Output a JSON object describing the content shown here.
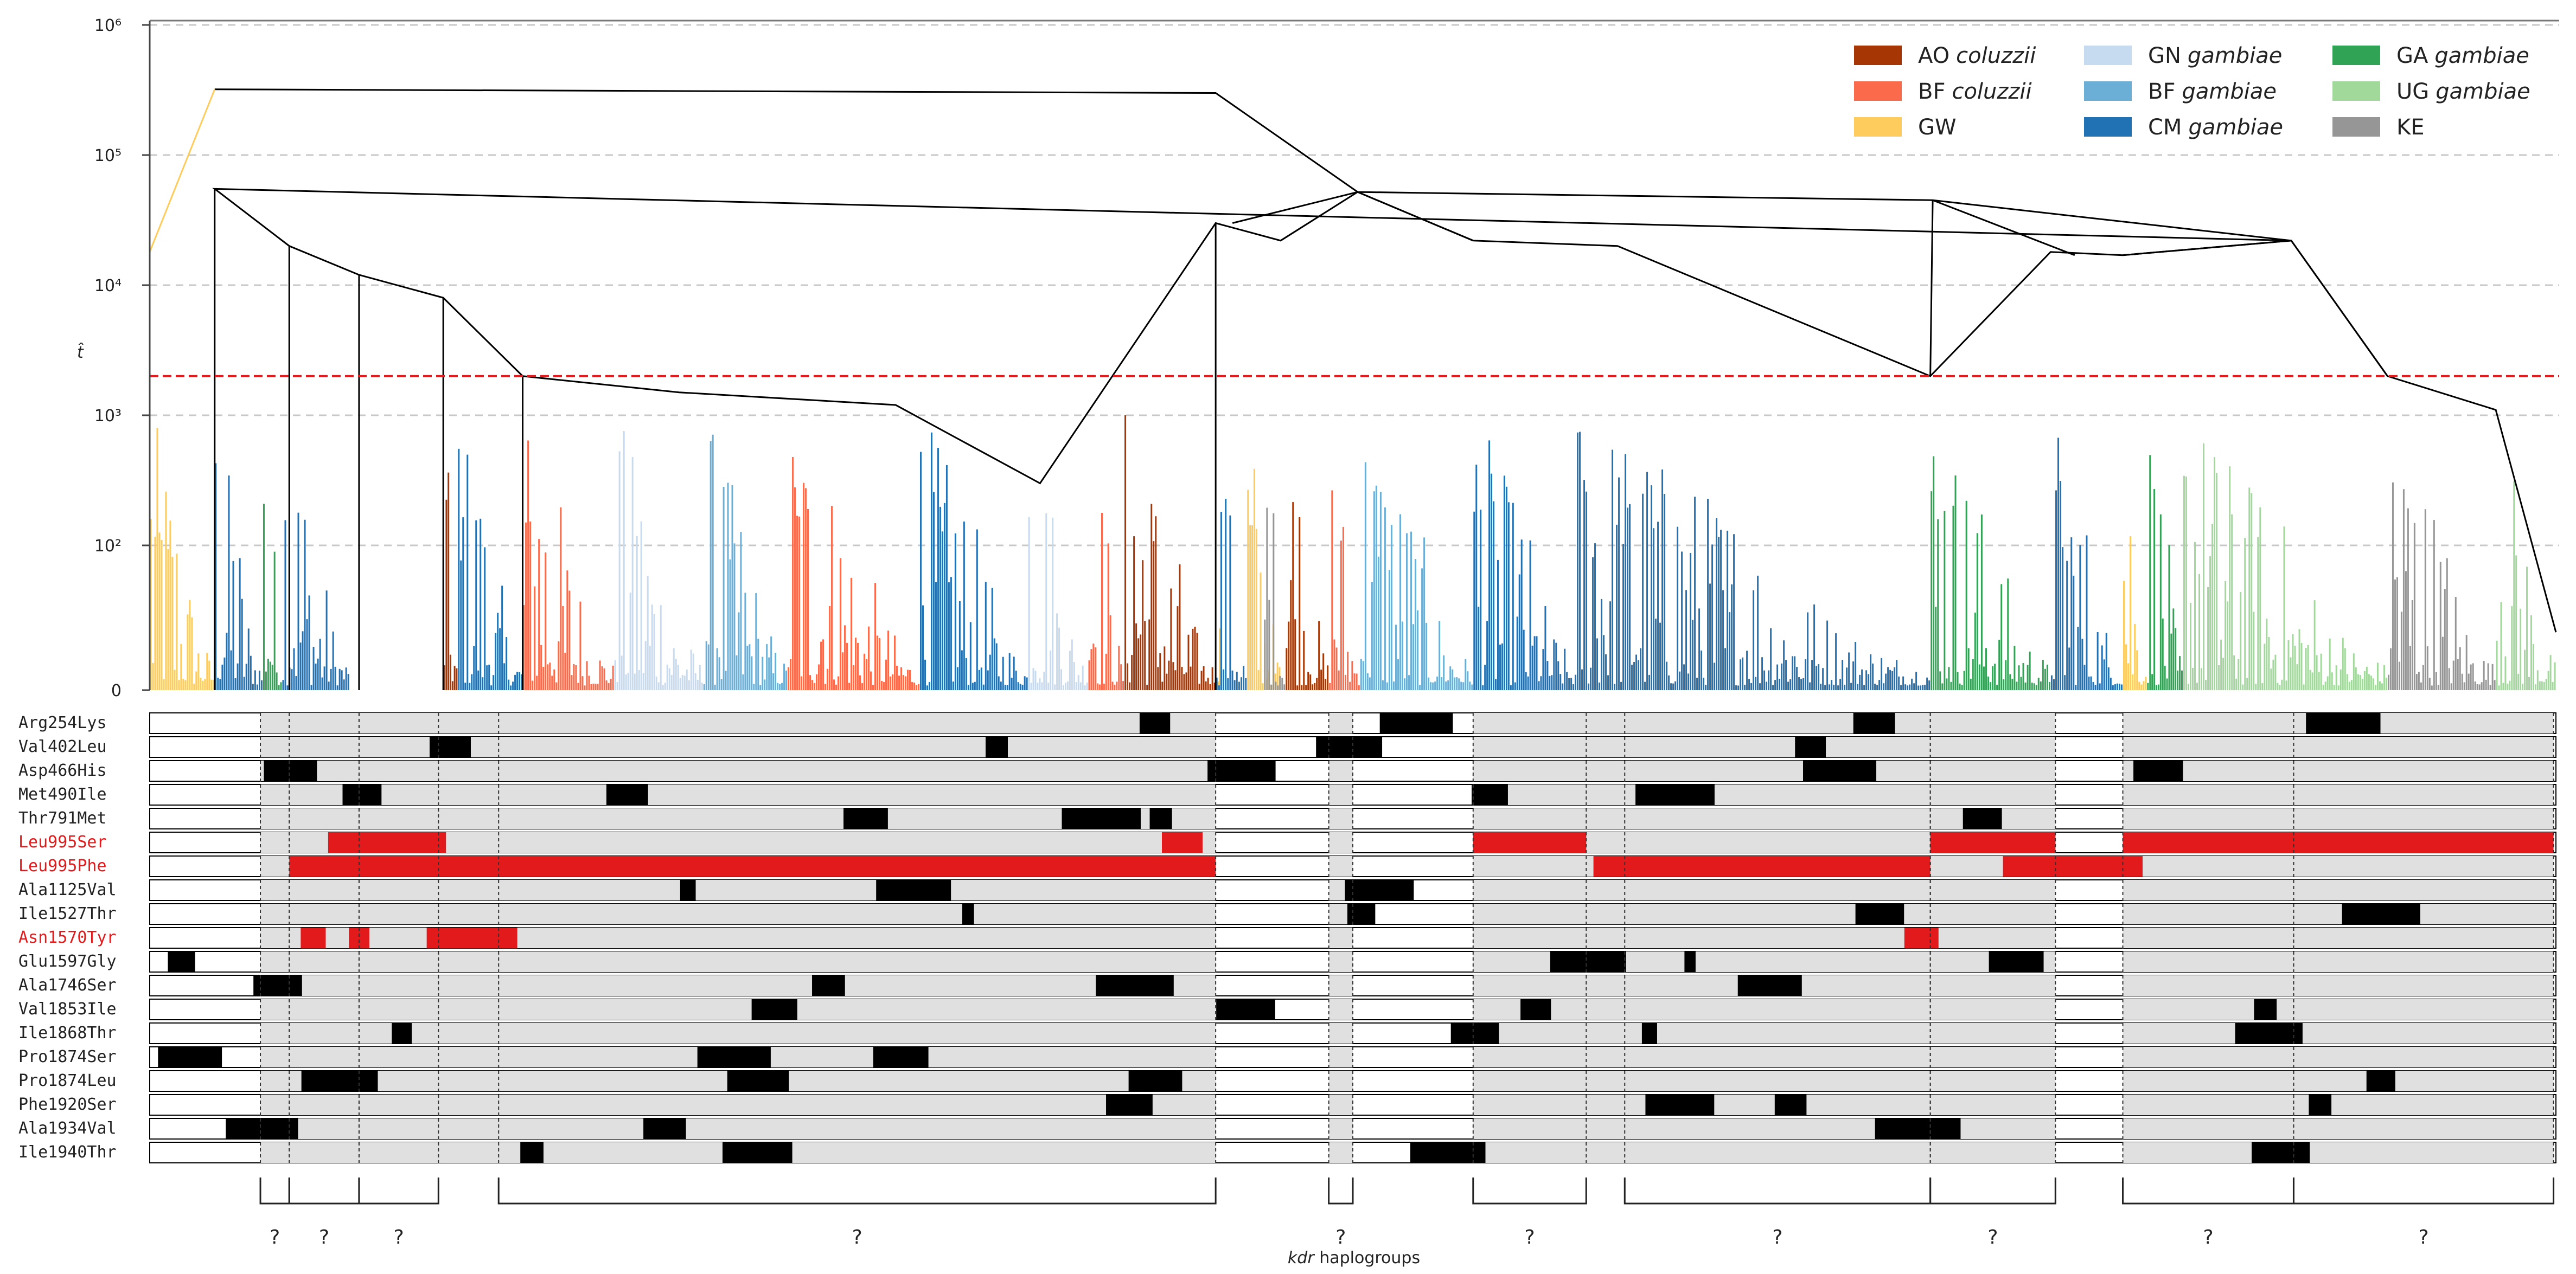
{
  "chart_data": {
    "type": "dendrogram",
    "ylabel": "t̂",
    "yscale": "symlog",
    "yticks": [
      {
        "value": 0,
        "label": "0"
      },
      {
        "value": 100,
        "label": "10²"
      },
      {
        "value": 1000,
        "label": "10³"
      },
      {
        "value": 10000,
        "label": "10⁴"
      },
      {
        "value": 100000,
        "label": "10⁵"
      },
      {
        "value": 1000000,
        "label": "10⁶"
      }
    ],
    "threshold_line": {
      "value": 2000,
      "color": "#e41a1c",
      "style": "dashed"
    },
    "grid": "horizontal dashed",
    "legend_position": "top-right",
    "legend": [
      {
        "label": "AO",
        "species": "coluzzii",
        "color": "#a63603"
      },
      {
        "label": "BF",
        "species": "coluzzii",
        "color": "#fb6a4a"
      },
      {
        "label": "GW",
        "species": "",
        "color": "#fecc5c"
      },
      {
        "label": "GN",
        "species": "gambiae",
        "color": "#c6dbef"
      },
      {
        "label": "BF",
        "species": "gambiae",
        "color": "#6baed6"
      },
      {
        "label": "CM",
        "species": "gambiae",
        "color": "#2171b5"
      },
      {
        "label": "GA",
        "species": "gambiae",
        "color": "#31a354"
      },
      {
        "label": "UG",
        "species": "gambiae",
        "color": "#a1d99b"
      },
      {
        "label": "KE",
        "species": "",
        "color": "#969696"
      }
    ],
    "leaf_blocks": [
      {
        "population": "GW",
        "start": 0.0,
        "end": 0.027
      },
      {
        "population": "CM gambiae",
        "start": 0.027,
        "end": 0.047
      },
      {
        "population": "GA gambiae",
        "start": 0.047,
        "end": 0.055
      },
      {
        "population": "CM gambiae",
        "start": 0.055,
        "end": 0.083
      },
      {
        "population": "AO coluzzii",
        "start": 0.122,
        "end": 0.128
      },
      {
        "population": "CM gambiae",
        "start": 0.128,
        "end": 0.155
      },
      {
        "population": "BF coluzzii",
        "start": 0.155,
        "end": 0.193
      },
      {
        "population": "GN gambiae",
        "start": 0.193,
        "end": 0.23
      },
      {
        "population": "BF gambiae",
        "start": 0.23,
        "end": 0.265
      },
      {
        "population": "BF coluzzii",
        "start": 0.265,
        "end": 0.32
      },
      {
        "population": "CM gambiae",
        "start": 0.32,
        "end": 0.365
      },
      {
        "population": "GN gambiae",
        "start": 0.365,
        "end": 0.39
      },
      {
        "population": "BF coluzzii",
        "start": 0.39,
        "end": 0.405
      },
      {
        "population": "AO coluzzii",
        "start": 0.405,
        "end": 0.443
      },
      {
        "population": "GW",
        "start": 0.443,
        "end": 0.445
      },
      {
        "population": "CM gambiae",
        "start": 0.443,
        "end": 0.456
      },
      {
        "population": "GW",
        "start": 0.456,
        "end": 0.47
      },
      {
        "population": "KE",
        "start": 0.463,
        "end": 0.472
      },
      {
        "population": "AO coluzzii",
        "start": 0.472,
        "end": 0.49
      },
      {
        "population": "BF coluzzii",
        "start": 0.49,
        "end": 0.503
      },
      {
        "population": "BF gambiae",
        "start": 0.503,
        "end": 0.55
      },
      {
        "population": "CM gambiae",
        "start": 0.55,
        "end": 0.593
      },
      {
        "population": "CM gambiae",
        "start": 0.593,
        "end": 0.74
      },
      {
        "population": "GA gambiae",
        "start": 0.74,
        "end": 0.79
      },
      {
        "population": "CM gambiae",
        "start": 0.79,
        "end": 0.82
      },
      {
        "population": "GW",
        "start": 0.82,
        "end": 0.83
      },
      {
        "population": "GA gambiae",
        "start": 0.83,
        "end": 0.845
      },
      {
        "population": "UG gambiae",
        "start": 0.845,
        "end": 0.93
      },
      {
        "population": "KE",
        "start": 0.93,
        "end": 0.975
      },
      {
        "population": "UG gambiae",
        "start": 0.975,
        "end": 1.0
      }
    ],
    "mutations": [
      {
        "name": "Arg254Lys",
        "highlight": false
      },
      {
        "name": "Val402Leu",
        "highlight": false
      },
      {
        "name": "Asp466His",
        "highlight": false
      },
      {
        "name": "Met490Ile",
        "highlight": false
      },
      {
        "name": "Thr791Met",
        "highlight": false
      },
      {
        "name": "Leu995Ser",
        "highlight": true
      },
      {
        "name": "Leu995Phe",
        "highlight": true
      },
      {
        "name": "Ala1125Val",
        "highlight": false
      },
      {
        "name": "Ile1527Thr",
        "highlight": false
      },
      {
        "name": "Asn1570Tyr",
        "highlight": true
      },
      {
        "name": "Glu1597Gly",
        "highlight": false
      },
      {
        "name": "Ala1746Ser",
        "highlight": false
      },
      {
        "name": "Val1853Ile",
        "highlight": false
      },
      {
        "name": "Ile1868Thr",
        "highlight": false
      },
      {
        "name": "Pro1874Ser",
        "highlight": false
      },
      {
        "name": "Pro1874Leu",
        "highlight": false
      },
      {
        "name": "Phe1920Ser",
        "highlight": false
      },
      {
        "name": "Ala1934Val",
        "highlight": false
      },
      {
        "name": "Ile1940Thr",
        "highlight": false
      }
    ],
    "haplogroups": [
      {
        "start": 0.046,
        "end": 0.058,
        "label": "?"
      },
      {
        "start": 0.058,
        "end": 0.087,
        "label": "?"
      },
      {
        "start": 0.087,
        "end": 0.12,
        "label": "?"
      },
      {
        "start": 0.145,
        "end": 0.443,
        "label": "?"
      },
      {
        "start": 0.49,
        "end": 0.5,
        "label": "?"
      },
      {
        "start": 0.55,
        "end": 0.597,
        "label": "?"
      },
      {
        "start": 0.613,
        "end": 0.74,
        "label": "?"
      },
      {
        "start": 0.74,
        "end": 0.792,
        "label": "?"
      },
      {
        "start": 0.82,
        "end": 0.891,
        "label": "?"
      },
      {
        "start": 0.891,
        "end": 0.999,
        "label": "?"
      }
    ],
    "xlabel": {
      "italic": "kdr",
      "rest": " haplogroups"
    }
  }
}
